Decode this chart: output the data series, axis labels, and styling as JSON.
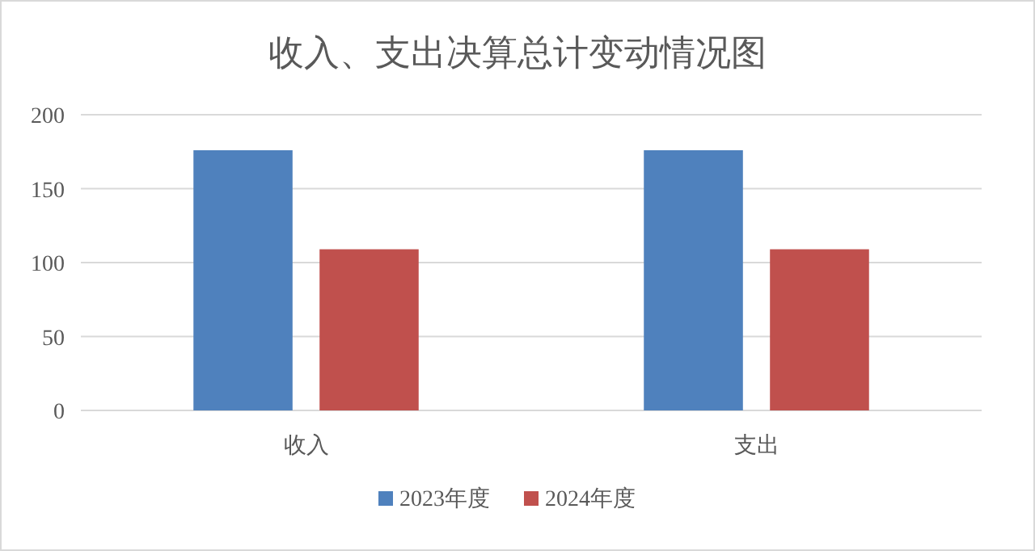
{
  "chart_data": {
    "type": "bar",
    "title": "收入、支出决算总计变动情况图",
    "categories": [
      "收入",
      "支出"
    ],
    "series": [
      {
        "name": "2023年度",
        "color": "#4f81bd",
        "values": [
          176,
          176
        ]
      },
      {
        "name": "2024年度",
        "color": "#c0504d",
        "values": [
          109,
          109
        ]
      }
    ],
    "ylim": [
      0,
      200
    ],
    "yticks": [
      0,
      50,
      100,
      150,
      200
    ],
    "grid": "y",
    "legend": "bottom"
  }
}
